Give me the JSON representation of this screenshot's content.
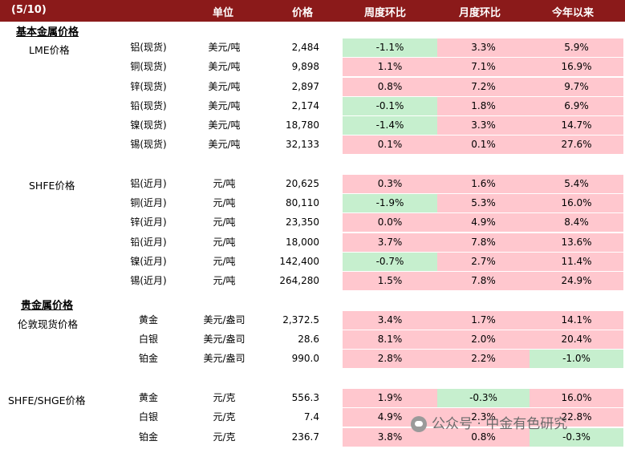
{
  "header": {
    "date": "(5/10)",
    "unit": "单位",
    "price": "价格",
    "wow": "周度环比",
    "mom": "月度环比",
    "ytd": "今年以来"
  },
  "sections": {
    "base_metals": "基本金属价格",
    "precious_metals": "贵金属价格"
  },
  "groups": {
    "lme": "LME价格",
    "shfe": "SHFE价格",
    "london": "伦敦现货价格",
    "shfe_shge": "SHFE/SHGE价格"
  },
  "rows": [
    {
      "name": "铝(现货)",
      "unit": "美元/吨",
      "price": "2,484",
      "wow": "-1.1%",
      "mom": "3.3%",
      "ytd": "5.9%",
      "wow_neg": true,
      "mom_neg": false,
      "ytd_neg": false
    },
    {
      "name": "铜(现货)",
      "unit": "美元/吨",
      "price": "9,898",
      "wow": "1.1%",
      "mom": "7.1%",
      "ytd": "16.9%",
      "wow_neg": false,
      "mom_neg": false,
      "ytd_neg": false
    },
    {
      "name": "锌(现货)",
      "unit": "美元/吨",
      "price": "2,897",
      "wow": "0.8%",
      "mom": "7.2%",
      "ytd": "9.7%",
      "wow_neg": false,
      "mom_neg": false,
      "ytd_neg": false
    },
    {
      "name": "铅(现货)",
      "unit": "美元/吨",
      "price": "2,174",
      "wow": "-0.1%",
      "mom": "1.8%",
      "ytd": "6.9%",
      "wow_neg": true,
      "mom_neg": false,
      "ytd_neg": false
    },
    {
      "name": "镍(现货)",
      "unit": "美元/吨",
      "price": "18,780",
      "wow": "-1.4%",
      "mom": "3.3%",
      "ytd": "14.7%",
      "wow_neg": true,
      "mom_neg": false,
      "ytd_neg": false
    },
    {
      "name": "锡(现货)",
      "unit": "美元/吨",
      "price": "32,133",
      "wow": "0.1%",
      "mom": "0.1%",
      "ytd": "27.6%",
      "wow_neg": false,
      "mom_neg": false,
      "ytd_neg": false
    },
    {
      "name": "铝(近月)",
      "unit": "元/吨",
      "price": "20,625",
      "wow": "0.3%",
      "mom": "1.6%",
      "ytd": "5.4%",
      "wow_neg": false,
      "mom_neg": false,
      "ytd_neg": false
    },
    {
      "name": "铜(近月)",
      "unit": "元/吨",
      "price": "80,110",
      "wow": "-1.9%",
      "mom": "5.3%",
      "ytd": "16.0%",
      "wow_neg": true,
      "mom_neg": false,
      "ytd_neg": false
    },
    {
      "name": "锌(近月)",
      "unit": "元/吨",
      "price": "23,350",
      "wow": "0.0%",
      "mom": "4.9%",
      "ytd": "8.4%",
      "wow_neg": false,
      "mom_neg": false,
      "ytd_neg": false
    },
    {
      "name": "铅(近月)",
      "unit": "元/吨",
      "price": "18,000",
      "wow": "3.7%",
      "mom": "7.8%",
      "ytd": "13.6%",
      "wow_neg": false,
      "mom_neg": false,
      "ytd_neg": false
    },
    {
      "name": "镍(近月)",
      "unit": "元/吨",
      "price": "142,400",
      "wow": "-0.7%",
      "mom": "2.7%",
      "ytd": "11.4%",
      "wow_neg": true,
      "mom_neg": false,
      "ytd_neg": false
    },
    {
      "name": "锡(近月)",
      "unit": "元/吨",
      "price": "264,280",
      "wow": "1.5%",
      "mom": "7.8%",
      "ytd": "24.9%",
      "wow_neg": false,
      "mom_neg": false,
      "ytd_neg": false
    },
    {
      "name": "黄金",
      "unit": "美元/盎司",
      "price": "2,372.5",
      "wow": "3.4%",
      "mom": "1.7%",
      "ytd": "14.1%",
      "wow_neg": false,
      "mom_neg": false,
      "ytd_neg": false
    },
    {
      "name": "白银",
      "unit": "美元/盎司",
      "price": "28.6",
      "wow": "8.1%",
      "mom": "2.0%",
      "ytd": "20.4%",
      "wow_neg": false,
      "mom_neg": false,
      "ytd_neg": false
    },
    {
      "name": "铂金",
      "unit": "美元/盎司",
      "price": "990.0",
      "wow": "2.8%",
      "mom": "2.2%",
      "ytd": "-1.0%",
      "wow_neg": false,
      "mom_neg": false,
      "ytd_neg": true
    },
    {
      "name": "黄金",
      "unit": "元/克",
      "price": "556.3",
      "wow": "1.9%",
      "mom": "-0.3%",
      "ytd": "16.0%",
      "wow_neg": false,
      "mom_neg": true,
      "ytd_neg": false
    },
    {
      "name": "白银",
      "unit": "元/克",
      "price": "7.4",
      "wow": "4.9%",
      "mom": "2.3%",
      "ytd": "22.8%",
      "wow_neg": false,
      "mom_neg": false,
      "ytd_neg": false
    },
    {
      "name": "铂金",
      "unit": "元/克",
      "price": "236.7",
      "wow": "3.8%",
      "mom": "0.8%",
      "ytd": "-0.3%",
      "wow_neg": false,
      "mom_neg": false,
      "ytd_neg": true
    }
  ],
  "watermark": "公众号 · 中金有色研究",
  "colors": {
    "header_bg": "#8b1a1a",
    "negative_fill": "#c6efce",
    "positive_fill": "#ffc7ce"
  }
}
